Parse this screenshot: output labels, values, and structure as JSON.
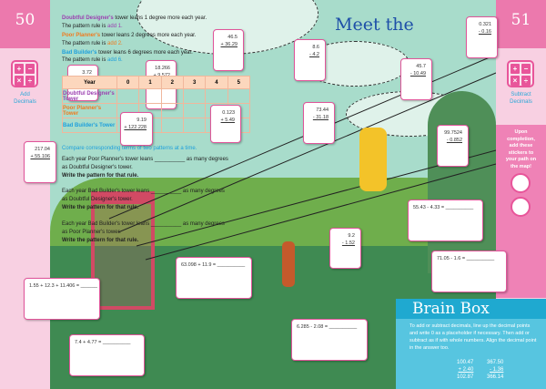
{
  "left_page": {
    "number": "50",
    "subject": [
      "Add",
      "Decimals"
    ]
  },
  "right_page": {
    "number": "51",
    "subject": [
      "Subtract",
      "Decimals"
    ],
    "sticker_note": [
      "Upon",
      "completion,",
      "add these",
      "stickers to",
      "your path on",
      "the map!"
    ]
  },
  "title": "Meet the",
  "calc_symbols": [
    "+",
    "−",
    "×",
    "÷"
  ],
  "patterns": [
    {
      "name": "Doubtful Designer's",
      "text": " tower leans 1 degree more each year.",
      "rule_prefix": "The pattern rule is ",
      "rule": "add 1.",
      "color": "#9b3fb0"
    },
    {
      "name": "Poor Planner's",
      "text": " tower leans 2 degrees more each year.",
      "rule_prefix": "The pattern rule is ",
      "rule": "add 2.",
      "color": "#f07a1e"
    },
    {
      "name": "Bad Builder's",
      "text": " tower leans 6 degrees more each year.",
      "rule_prefix": "The pattern rule is ",
      "rule": "add 6.",
      "color": "#1ea0dc"
    }
  ],
  "table": {
    "headers": [
      "Year",
      "0",
      "1",
      "2",
      "3",
      "4",
      "5"
    ],
    "rows": [
      "Doubtful Designer's Tower",
      "Poor Planner's Tower",
      "Bad Builder's Tower"
    ]
  },
  "compare": {
    "heading": "Compare corresponding terms of two patterns at a time.",
    "items": [
      {
        "l1": "Each year Poor Planner's tower leans __________ as many degrees",
        "l2": "as Doubtful Designer's tower.",
        "l3": "Write the pattern for that rule."
      },
      {
        "l1": "Each year Bad Builder's tower leans __________ as many degrees",
        "l2": "as Doubtful Designer's tower.",
        "l3": "Write the pattern for that rule."
      },
      {
        "l1": "Each year Bad Builder's tower leans __________ as many degrees",
        "l2": "as Poor Planner's tower.",
        "l3": "Write the pattern for that rule."
      }
    ]
  },
  "vertical_cards": [
    {
      "top": "46.5",
      "bottom": "+ 36.29"
    },
    {
      "top": "3.72",
      "bottom": ""
    },
    {
      "top": "18.266",
      "bottom": "+ 9.572"
    },
    {
      "top": "0.123",
      "bottom": "+ 5.49"
    },
    {
      "top": "9.19",
      "bottom": "+ 122.228"
    },
    {
      "top": "217.04",
      "bottom": "+ 55.106"
    },
    {
      "top": "8.6",
      "bottom": "- 4.2"
    },
    {
      "top": "73.44",
      "bottom": "- 31.18"
    },
    {
      "top": "45.7",
      "bottom": "- 10.49"
    },
    {
      "top": "0.321",
      "bottom": "- 0.16"
    },
    {
      "top": "99.7524",
      "bottom": "- 0.852"
    },
    {
      "top": "9.2",
      "bottom": "- 1.52"
    }
  ],
  "horizontal_cards": [
    "55.43 - 4.33 = __________",
    "71.05 - 1.6 = __________",
    "63.098 + 11.9 = __________",
    "1.55 + 12.3 + 11.406 = ______",
    "6.285 - 2.08 = __________",
    "7.4 + 4.77 = __________"
  ],
  "brain_box": {
    "title": "Brain Box",
    "text": "To add or subtract decimals, line up the decimal points and write 0 as a placeholder if necessary. Then add or subtract as if with whole numbers. Align the decimal point in the answer too.",
    "ex1": [
      "100.47",
      "+ 2.40",
      "102.87"
    ],
    "ex2": [
      "367.50",
      "- 1.36",
      "366.14"
    ]
  },
  "colors": {
    "pink": "#ec79ad",
    "cyan": "#4fc3df",
    "title_blue": "#1e4fa8"
  }
}
